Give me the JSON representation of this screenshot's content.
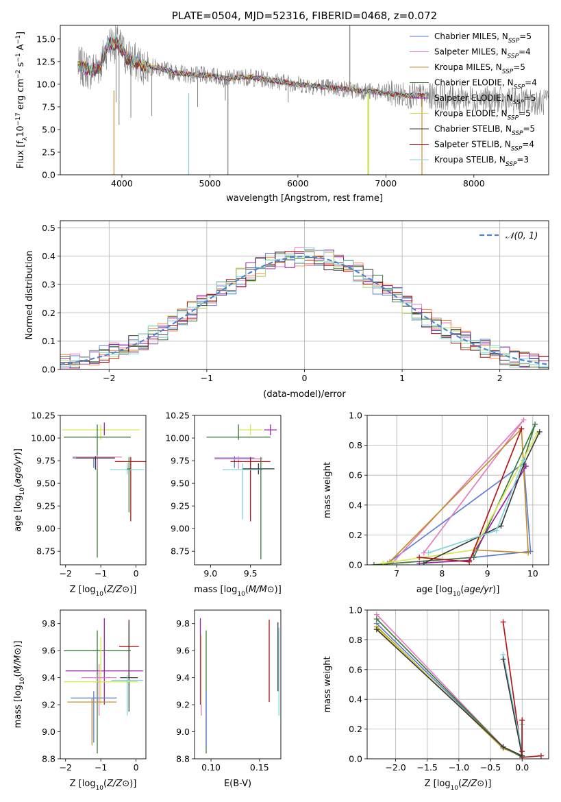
{
  "colors": {
    "Chabrier MILES": "#5b7fd6",
    "Salpeter MILES": "#e37cc0",
    "Kroupa MILES": "#c58d2a",
    "Chabrier ELODIE": "#3d7a3d",
    "Salpeter ELODIE": "#9b1fa8",
    "Kroupa ELODIE": "#d6e84a",
    "Chabrier STELIB": "#3a3a3a",
    "Salpeter STELIB": "#b01515",
    "Kroupa STELIB": "#7fd4dc",
    "orange": "#ff8c42",
    "lightgreen": "#b5e06a",
    "spectrum": "#808080",
    "normal": "#4a86d0"
  },
  "chart_data": [
    {
      "id": "spectrum",
      "type": "line",
      "title": "PLATE=0504, MJD=52316, FIBERID=0468, z=0.072",
      "xlabel": "wavelength [Angstrom, rest frame]",
      "ylabel": "Flux [f_λ 10^-17 erg cm^-2 s^-1 A^-1]",
      "xlim": [
        3300,
        8850
      ],
      "ylim": [
        0,
        16.5
      ],
      "xticks": [
        4000,
        5000,
        6000,
        7000,
        8000
      ],
      "yticks": [
        0.0,
        2.5,
        5.0,
        7.5,
        10.0,
        12.5,
        15.0
      ],
      "legend_location": "upper right",
      "legend": [
        {
          "label": "Chabrier MILES, N",
          "sub": "SSP",
          "suffix": "=5",
          "color_key": "Chabrier MILES"
        },
        {
          "label": "Salpeter MILES, N",
          "sub": "SSP",
          "suffix": "=4",
          "color_key": "Salpeter MILES"
        },
        {
          "label": "Kroupa MILES, N",
          "sub": "SSP",
          "suffix": "=5",
          "color_key": "Kroupa MILES"
        },
        {
          "label": "Chabrier ELODIE, N",
          "sub": "SSP",
          "suffix": "=4",
          "color_key": "Chabrier ELODIE"
        },
        {
          "label": "Salpeter ELODIE, N",
          "sub": "SSP",
          "suffix": "=5",
          "color_key": "Salpeter ELODIE"
        },
        {
          "label": "Kroupa ELODIE, N",
          "sub": "SSP",
          "suffix": "=5",
          "color_key": "Kroupa ELODIE"
        },
        {
          "label": "Chabrier STELIB, N",
          "sub": "SSP",
          "suffix": "=5",
          "color_key": "Chabrier STELIB"
        },
        {
          "label": "Salpeter STELIB, N",
          "sub": "SSP",
          "suffix": "=4",
          "color_key": "Salpeter STELIB"
        },
        {
          "label": "Kroupa STELIB, N",
          "sub": "SSP",
          "suffix": "=3",
          "color_key": "Kroupa STELIB"
        }
      ],
      "continuum": {
        "x": [
          3500,
          3650,
          3750,
          3850,
          3950,
          4050,
          4200,
          4400,
          4600,
          4800,
          5000,
          5200,
          5400,
          5600,
          5800,
          6000,
          6200,
          6400,
          6600,
          6800,
          7000,
          7200,
          7400,
          7600,
          7800,
          8000,
          8200,
          8400,
          8600,
          8800
        ],
        "y": [
          12.0,
          11.5,
          12.0,
          14.5,
          14.5,
          13.0,
          12.2,
          11.8,
          11.3,
          11.0,
          11.0,
          10.6,
          10.8,
          10.6,
          10.3,
          10.0,
          9.8,
          9.6,
          9.4,
          9.2,
          9.0,
          8.8,
          8.7,
          8.6,
          8.5,
          8.4,
          8.3,
          8.2,
          8.1,
          8.0
        ]
      },
      "dips": [
        {
          "x": 3934,
          "y": 8.0,
          "color_key": "spectrum"
        },
        {
          "x": 3968,
          "y": 5.5,
          "color_key": "spectrum"
        },
        {
          "x": 4102,
          "y": 6.3,
          "color_key": "spectrum"
        },
        {
          "x": 4340,
          "y": 6.5,
          "color_key": "spectrum"
        },
        {
          "x": 4861,
          "y": 7.5,
          "color_key": "spectrum"
        },
        {
          "x": 5175,
          "y": 8.2,
          "color_key": "spectrum"
        },
        {
          "x": 5890,
          "y": 8.0,
          "color_key": "spectrum"
        }
      ],
      "vlines": [
        {
          "x": 3910,
          "y0": 0,
          "y1": 9.3,
          "color_key": "Kroupa MILES"
        },
        {
          "x": 4760,
          "y0": 0,
          "y1": 9.0,
          "color_key": "Kroupa STELIB"
        },
        {
          "x": 5205,
          "y0": 0,
          "y1": 10.5,
          "color_key": "spectrum"
        },
        {
          "x": 6795,
          "y0": 0,
          "y1": 9.0,
          "color_key": "Kroupa ELODIE"
        },
        {
          "x": 6805,
          "y0": 0,
          "y1": 9.0,
          "color_key": "lightgreen"
        },
        {
          "x": 7410,
          "y0": 0,
          "y1": 8.5,
          "color_key": "Kroupa MILES"
        },
        {
          "x": 6590,
          "y0": 9.6,
          "y1": 16.5,
          "color_key": "spectrum"
        }
      ]
    },
    {
      "id": "residuals",
      "type": "line",
      "xlabel": "(data-model)/error",
      "ylabel": "Normed distribution",
      "xlim": [
        -2.5,
        2.5
      ],
      "ylim": [
        0.0,
        0.525
      ],
      "xticks": [
        -2,
        -1,
        0,
        1,
        2
      ],
      "yticks": [
        0.0,
        0.1,
        0.2,
        0.3,
        0.4,
        0.5
      ],
      "grid": true,
      "legend_location": "upper right",
      "legend": [
        {
          "label": "𝒩(0, 1)",
          "color_key": "normal",
          "dashed": true
        }
      ],
      "bins": {
        "start": -2.5,
        "width": 0.1,
        "count": 50
      },
      "series_color_keys": [
        "Chabrier MILES",
        "Salpeter MILES",
        "orange",
        "Chabrier ELODIE",
        "Salpeter ELODIE",
        "lightgreen",
        "Chabrier STELIB",
        "Salpeter STELIB",
        "Kroupa STELIB"
      ],
      "normal": {
        "mean": 0,
        "sigma": 1
      }
    },
    {
      "id": "age-vs-Z",
      "type": "scatter",
      "xlabel": "Z [log10(Z/Z⊙)]",
      "ylabel": "age [log10(age/yr)]",
      "xlim": [
        -2.15,
        0.28
      ],
      "ylim": [
        8.6,
        10.25
      ],
      "xticks": [
        -2,
        -1,
        0
      ],
      "yticks": [
        8.75,
        9.0,
        9.25,
        9.5,
        9.75,
        10.0,
        10.25
      ],
      "points": [
        {
          "color_key": "Kroupa ELODIE",
          "x": -1.0,
          "xerr": 1.1,
          "y": 10.09,
          "ylo": 9.98,
          "yhi": 10.15
        },
        {
          "color_key": "Chabrier ELODIE",
          "x": -1.1,
          "xerr": 0.95,
          "y": 10.01,
          "ylo": 8.68,
          "yhi": 10.15
        },
        {
          "color_key": "Salpeter ELODIE",
          "x": -0.9,
          "xerr": 0.0,
          "y": 10.1,
          "ylo": 10.03,
          "yhi": 10.17
        },
        {
          "color_key": "Chabrier MILES",
          "x": -1.2,
          "xerr": 0.6,
          "y": 9.78,
          "ylo": 9.67,
          "yhi": 9.79
        },
        {
          "color_key": "Salpeter MILES",
          "x": -1.1,
          "xerr": 0.7,
          "y": 9.79,
          "ylo": 9.66,
          "yhi": 9.81
        },
        {
          "color_key": "Chabrier STELIB",
          "x": -1.15,
          "xerr": 0.55,
          "y": 9.78,
          "ylo": 9.65,
          "yhi": 9.8
        },
        {
          "color_key": "Salpeter STELIB",
          "x": -0.15,
          "xerr": 0.45,
          "y": 9.74,
          "ylo": 9.08,
          "yhi": 9.79
        },
        {
          "color_key": "Kroupa STELIB",
          "x": -0.25,
          "xerr": 0.48,
          "y": 9.65,
          "ylo": 9.6,
          "yhi": 9.72
        },
        {
          "color_key": "Chabrier ELODIE",
          "x": -0.2,
          "xerr": 0.05,
          "y": 9.66,
          "ylo": 9.18,
          "yhi": 9.79
        }
      ]
    },
    {
      "id": "age-vs-mass",
      "type": "scatter",
      "xlabel": "mass [log10(M/M⊙)]",
      "ylabel": "",
      "xlim": [
        8.8,
        9.88
      ],
      "ylim": [
        8.6,
        10.25
      ],
      "xticks": [
        9.0,
        9.5
      ],
      "yticks": [
        8.75,
        9.0,
        9.25,
        9.5,
        9.75,
        10.0,
        10.25
      ],
      "points": [
        {
          "color_key": "Kroupa ELODIE",
          "x": 9.5,
          "xerr": 0.15,
          "y": 10.09,
          "ylo": 10.03,
          "yhi": 10.15
        },
        {
          "color_key": "Salpeter ELODIE",
          "x": 9.75,
          "xerr": 0.08,
          "y": 10.09,
          "ylo": 10.03,
          "yhi": 10.15
        },
        {
          "color_key": "Chabrier ELODIE",
          "x": 9.35,
          "xerr": 0.4,
          "y": 10.01,
          "ylo": 9.98,
          "yhi": 10.15
        },
        {
          "color_key": "Chabrier MILES",
          "x": 9.3,
          "xerr": 0.25,
          "y": 9.78,
          "ylo": 9.67,
          "yhi": 9.8
        },
        {
          "color_key": "Salpeter MILES",
          "x": 9.35,
          "xerr": 0.3,
          "y": 9.77,
          "ylo": 9.66,
          "yhi": 9.8
        },
        {
          "color_key": "Salpeter STELIB",
          "x": 9.5,
          "xerr": 0.25,
          "y": 9.74,
          "ylo": 9.08,
          "yhi": 9.79
        },
        {
          "color_key": "Chabrier STELIB",
          "x": 9.6,
          "xerr": 0.2,
          "y": 9.66,
          "ylo": 9.6,
          "yhi": 9.72
        },
        {
          "color_key": "Kroupa STELIB",
          "x": 9.4,
          "xerr": 0.25,
          "y": 9.65,
          "ylo": 9.1,
          "yhi": 9.72
        },
        {
          "color_key": "Chabrier ELODIE",
          "x": 9.63,
          "xerr": 0.0,
          "y": 9.66,
          "ylo": 8.66,
          "yhi": 9.79
        }
      ]
    },
    {
      "id": "weight-vs-age",
      "type": "line",
      "xlabel": "age [log10(age/yr)]",
      "ylabel": "mass weight",
      "xlim": [
        6.35,
        10.35
      ],
      "ylim": [
        0.0,
        1.0
      ],
      "xticks": [
        7,
        8,
        9,
        10
      ],
      "yticks": [
        0.0,
        0.2,
        0.4,
        0.6,
        0.8,
        1.0
      ],
      "grid": true,
      "series": [
        {
          "color_key": "Chabrier MILES",
          "x": [
            6.8,
            9.8,
            9.95,
            8.7
          ],
          "y": [
            0.01,
            0.68,
            0.09,
            0.05
          ]
        },
        {
          "color_key": "Salpeter MILES",
          "x": [
            6.9,
            9.8,
            7.6
          ],
          "y": [
            0.01,
            0.97,
            0.08
          ]
        },
        {
          "color_key": "Kroupa MILES",
          "x": [
            6.85,
            9.75,
            9.9,
            8.7
          ],
          "y": [
            0.02,
            0.91,
            0.08,
            0.1
          ]
        },
        {
          "color_key": "Chabrier ELODIE",
          "x": [
            6.5,
            8.7,
            10.05,
            9.8
          ],
          "y": [
            0.0,
            0.05,
            0.94,
            0.7
          ]
        },
        {
          "color_key": "Salpeter ELODIE",
          "x": [
            7.5,
            8.6,
            9.85
          ],
          "y": [
            0.01,
            0.03,
            0.66
          ]
        },
        {
          "color_key": "Kroupa ELODIE",
          "x": [
            6.7,
            8.7,
            10.1
          ],
          "y": [
            0.01,
            0.1,
            0.88
          ]
        },
        {
          "color_key": "Chabrier STELIB",
          "x": [
            7.6,
            9.3,
            9.8,
            10.15
          ],
          "y": [
            0.01,
            0.26,
            0.67,
            0.89
          ]
        },
        {
          "color_key": "Salpeter STELIB",
          "x": [
            7.5,
            8.6,
            9.75
          ],
          "y": [
            0.05,
            0.02,
            0.91
          ]
        },
        {
          "color_key": "Kroupa STELIB",
          "x": [
            7.7,
            9.2,
            9.8
          ],
          "y": [
            0.08,
            0.23,
            0.7
          ]
        }
      ]
    },
    {
      "id": "mass-vs-Z",
      "type": "scatter",
      "xlabel": "Z [log10(Z/Z⊙)]",
      "ylabel": "mass [log10(M/M⊙)]",
      "xlim": [
        -2.15,
        0.28
      ],
      "ylim": [
        8.8,
        9.9
      ],
      "xticks": [
        -2,
        -1,
        0
      ],
      "yticks": [
        8.8,
        9.0,
        9.2,
        9.4,
        9.6,
        9.8
      ],
      "points": [
        {
          "color_key": "Salpeter STELIB",
          "x": -0.2,
          "xerr": 0.28,
          "y": 9.63,
          "ylo": 9.4,
          "yhi": 9.83
        },
        {
          "color_key": "Chabrier ELODIE",
          "x": -1.1,
          "xerr": 0.95,
          "y": 9.6,
          "ylo": 8.84,
          "yhi": 9.75
        },
        {
          "color_key": "Salpeter ELODIE",
          "x": -0.9,
          "xerr": 1.1,
          "y": 9.45,
          "ylo": 9.2,
          "yhi": 9.84
        },
        {
          "color_key": "Chabrier STELIB",
          "x": -0.2,
          "xerr": 0.25,
          "y": 9.4,
          "ylo": 9.15,
          "yhi": 9.82
        },
        {
          "color_key": "Kroupa ELODIE",
          "x": -1.0,
          "xerr": 1.05,
          "y": 9.37,
          "ylo": 9.2,
          "yhi": 9.7
        },
        {
          "color_key": "Salpeter MILES",
          "x": -1.05,
          "xerr": 0.5,
          "y": 9.4,
          "ylo": 9.12,
          "yhi": 9.5
        },
        {
          "color_key": "Kroupa STELIB",
          "x": -0.25,
          "xerr": 0.45,
          "y": 9.38,
          "ylo": 9.12,
          "yhi": 9.42
        },
        {
          "color_key": "Chabrier MILES",
          "x": -1.2,
          "xerr": 0.65,
          "y": 9.25,
          "ylo": 8.92,
          "yhi": 9.3
        },
        {
          "color_key": "Kroupa MILES",
          "x": -1.25,
          "xerr": 0.7,
          "y": 9.22,
          "ylo": 8.9,
          "yhi": 9.25
        }
      ]
    },
    {
      "id": "mass-vs-ebv",
      "type": "scatter",
      "xlabel": "E(B-V)",
      "ylabel": "",
      "xlim": [
        0.083,
        0.172
      ],
      "ylim": [
        8.8,
        9.9
      ],
      "xticks": [
        0.1,
        0.15
      ],
      "yticks": [
        8.8,
        9.0,
        9.2,
        9.4,
        9.6,
        9.8
      ],
      "points": [
        {
          "color_key": "Salpeter ELODIE",
          "x": 0.089,
          "xerr": 0,
          "y": 9.45,
          "ylo": 9.2,
          "yhi": 9.84
        },
        {
          "color_key": "Salpeter MILES",
          "x": 0.09,
          "xerr": 0,
          "y": 9.4,
          "ylo": 9.12,
          "yhi": 9.7
        },
        {
          "color_key": "Kroupa ELODIE",
          "x": 0.09,
          "xerr": 0,
          "y": 9.37,
          "ylo": 9.2,
          "yhi": 9.72
        },
        {
          "color_key": "Chabrier ELODIE",
          "x": 0.095,
          "xerr": 0,
          "y": 9.6,
          "ylo": 8.84,
          "yhi": 9.75
        },
        {
          "color_key": "Chabrier MILES",
          "x": 0.095,
          "xerr": 0,
          "y": 9.25,
          "ylo": 8.9,
          "yhi": 9.3
        },
        {
          "color_key": "Salpeter STELIB",
          "x": 0.16,
          "xerr": 0,
          "y": 9.63,
          "ylo": 9.22,
          "yhi": 9.83
        },
        {
          "color_key": "Chabrier STELIB",
          "x": 0.169,
          "xerr": 0,
          "y": 9.4,
          "ylo": 9.3,
          "yhi": 9.81
        },
        {
          "color_key": "Kroupa STELIB",
          "x": 0.17,
          "xerr": 0,
          "y": 9.38,
          "ylo": 9.12,
          "yhi": 9.77
        }
      ]
    },
    {
      "id": "weight-vs-Z",
      "type": "line",
      "xlabel": "Z [log10(Z/Z⊙)]",
      "ylabel": "mass weight",
      "xlim": [
        -2.45,
        0.42
      ],
      "ylim": [
        0.0,
        1.0
      ],
      "xticks": [
        -2.0,
        -1.5,
        -1.0,
        -0.5,
        0.0
      ],
      "yticks": [
        0.0,
        0.2,
        0.4,
        0.6,
        0.8,
        1.0
      ],
      "grid": true,
      "series": [
        {
          "color_key": "Chabrier MILES",
          "x": [
            -2.3,
            -0.3,
            0.0
          ],
          "y": [
            0.91,
            0.08,
            0.02
          ]
        },
        {
          "color_key": "Salpeter MILES",
          "x": [
            -2.3,
            -0.3,
            0.0
          ],
          "y": [
            0.97,
            0.08,
            0.02
          ]
        },
        {
          "color_key": "Kroupa MILES",
          "x": [
            -2.3,
            -0.3,
            0.0
          ],
          "y": [
            0.89,
            0.07,
            0.02
          ]
        },
        {
          "color_key": "Chabrier ELODIE",
          "x": [
            -2.3,
            -0.3,
            0.0
          ],
          "y": [
            0.94,
            0.08,
            0.01
          ]
        },
        {
          "color_key": "Kroupa ELODIE",
          "x": [
            -2.3,
            -0.3,
            0.0
          ],
          "y": [
            0.88,
            0.08,
            0.02
          ]
        },
        {
          "color_key": "Chabrier STELIB",
          "x": [
            -2.3,
            -0.3,
            0.0
          ],
          "y": [
            0.87,
            0.08,
            0.02
          ]
        },
        {
          "color_key": "Salpeter STELIB",
          "x": [
            -0.3,
            0.0,
            0.3
          ],
          "y": [
            0.92,
            0.01,
            0.02
          ]
        },
        {
          "color_key": "Kroupa STELIB",
          "x": [
            -0.3,
            0.0,
            0.0
          ],
          "y": [
            0.7,
            0.05,
            0.23
          ]
        },
        {
          "color_key": "Chabrier STELIB",
          "x": [
            -0.3,
            0.0,
            0.0
          ],
          "y": [
            0.67,
            0.02,
            0.26
          ]
        },
        {
          "color_key": "Salpeter STELIB",
          "x": [
            0.0,
            0.0
          ],
          "y": [
            0.05,
            0.26
          ]
        }
      ]
    }
  ]
}
